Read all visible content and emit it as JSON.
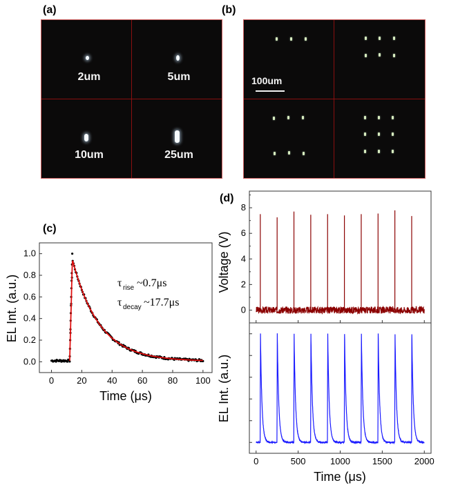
{
  "panels": {
    "a": {
      "label": "(a)",
      "cells": [
        {
          "size_label": "2um"
        },
        {
          "size_label": "5um"
        },
        {
          "size_label": "10um"
        },
        {
          "size_label": "25um"
        }
      ]
    },
    "b": {
      "label": "(b)",
      "scale_bar_label": "100um",
      "cells": [
        {
          "array": "1x3"
        },
        {
          "array": "2x3"
        },
        {
          "array": "2x3"
        },
        {
          "array": "3x3"
        }
      ]
    },
    "c": {
      "label": "(c)"
    },
    "d": {
      "label": "(d)"
    }
  },
  "colors": {
    "scatter": "#000000",
    "fit": "#e01010",
    "voltage": "#8b0000",
    "el": "#1a1aff",
    "grid_divider": "#8a1010"
  },
  "chart_data": [
    {
      "type": "scatter",
      "title": "",
      "xlabel": "Time (μs)",
      "ylabel": "EL Int. (a.u.)",
      "xlim": [
        -8,
        106
      ],
      "ylim": [
        -0.1,
        1.1
      ],
      "xticks": [
        "0",
        "20",
        "40",
        "60",
        "80",
        "100"
      ],
      "yticks": [
        "0.0",
        "0.2",
        "0.4",
        "0.6",
        "0.8",
        "1.0"
      ],
      "annotations": [
        {
          "symbol": "τ",
          "subscript": "rise",
          "text": "~0.7μs"
        },
        {
          "symbol": "τ",
          "subscript": "decay",
          "text": "~17.7μs"
        }
      ],
      "series": [
        {
          "name": "data",
          "style": "markers",
          "description_points": {
            "baseline_until_us": 12,
            "rise_start_us": 12,
            "peak_us": 13.5,
            "peak_value": 1.0,
            "decay_tau_us": 17.7,
            "end_us": 100
          }
        },
        {
          "name": "fit",
          "style": "line",
          "rise_tau_us": 0.7,
          "decay_tau_us": 17.7
        }
      ]
    },
    {
      "type": "line",
      "title": "",
      "xlabel": "Time (μs)",
      "ylabel": "Voltage (V)",
      "xlim": [
        -80,
        2080
      ],
      "ylim": [
        -1,
        9.3
      ],
      "xticks": [
        "0",
        "500",
        "1000",
        "1500",
        "2000"
      ],
      "yticks": [
        "0",
        "2",
        "4",
        "6",
        "8"
      ],
      "pulse_times_us": [
        50,
        250,
        450,
        650,
        850,
        1050,
        1250,
        1450,
        1650,
        1850
      ],
      "pulse_peaks_v": [
        7.5,
        7.25,
        7.7,
        7.45,
        7.5,
        7.4,
        7.5,
        7.55,
        7.8,
        7.35
      ]
    },
    {
      "type": "line",
      "title": "",
      "xlabel": "Time (μs)",
      "ylabel": "EL Int. (a.u.)",
      "xlim": [
        -80,
        2080
      ],
      "ylim": [
        -0.1,
        1.1
      ],
      "xticks": [
        "0",
        "500",
        "1000",
        "1500",
        "2000"
      ],
      "pulse_times_us": [
        50,
        250,
        450,
        650,
        850,
        1050,
        1250,
        1450,
        1650,
        1850
      ],
      "peak_value": 1.0,
      "decay_tau_us": 17.7
    }
  ]
}
